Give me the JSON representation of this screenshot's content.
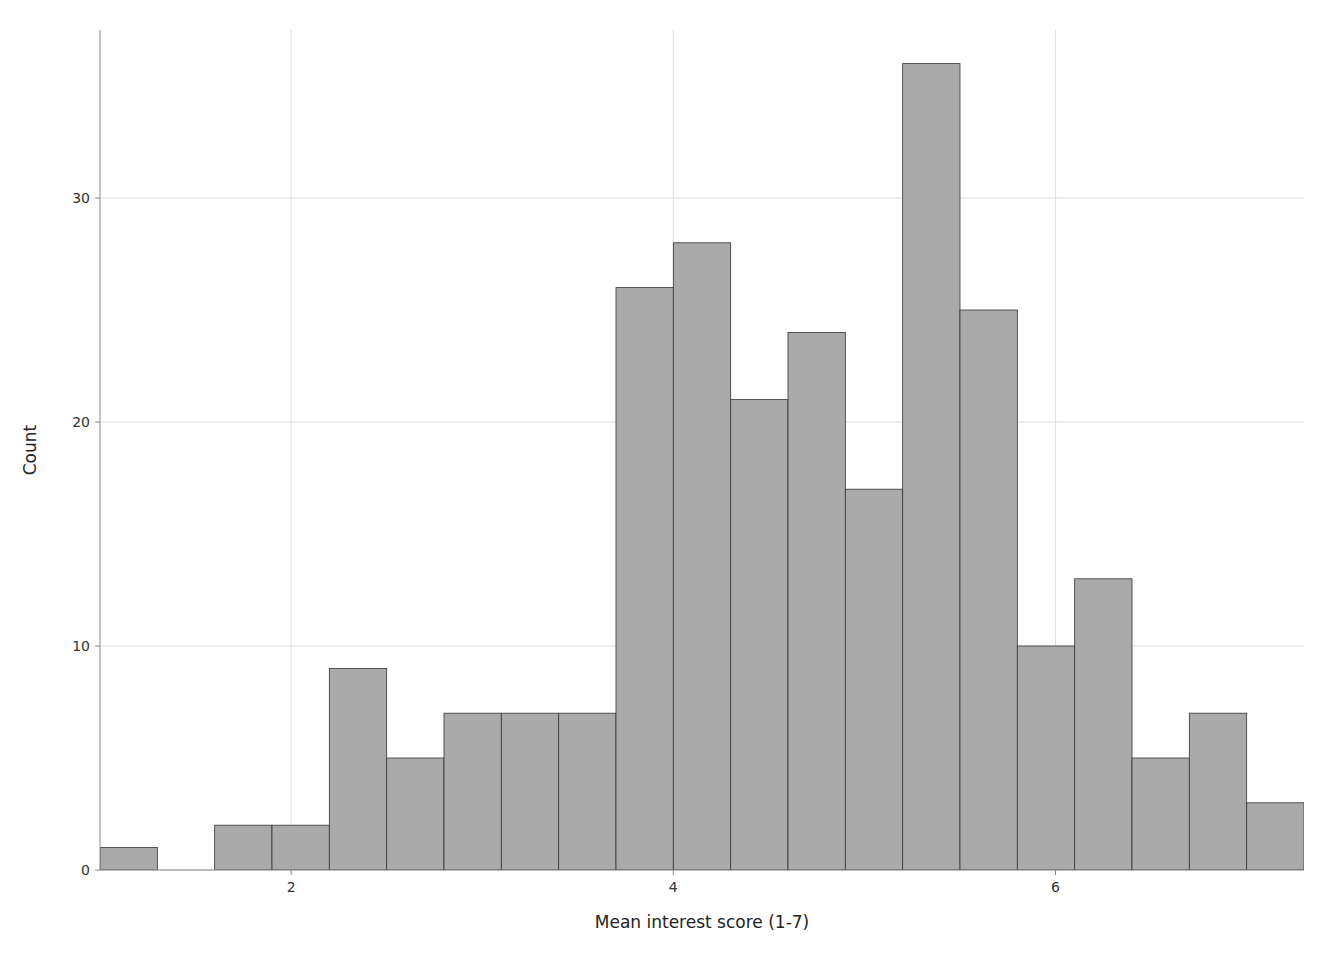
{
  "chart_data": {
    "type": "histogram",
    "x_label": "Mean interest score (1-7)",
    "y_label": "Count",
    "bins": [
      1.0,
      1.3,
      1.6,
      1.9,
      2.2,
      2.5,
      2.8,
      3.1,
      3.4,
      3.7,
      4.0,
      4.3,
      4.6,
      4.9,
      5.2,
      5.5,
      5.8,
      6.1,
      6.4,
      6.7,
      7.0,
      7.3
    ],
    "values": [
      1,
      0,
      2,
      2,
      9,
      5,
      7,
      7,
      7,
      26,
      28,
      21,
      24,
      17,
      36,
      25,
      10,
      13,
      5,
      7,
      3
    ],
    "color": "#aaaaaa",
    "xlim": [
      1.0,
      7.3
    ],
    "ylim": [
      0,
      37.5
    ],
    "xticks": [
      2,
      4,
      6
    ],
    "yticks": [
      0,
      10,
      20,
      30
    ],
    "grid": true
  }
}
